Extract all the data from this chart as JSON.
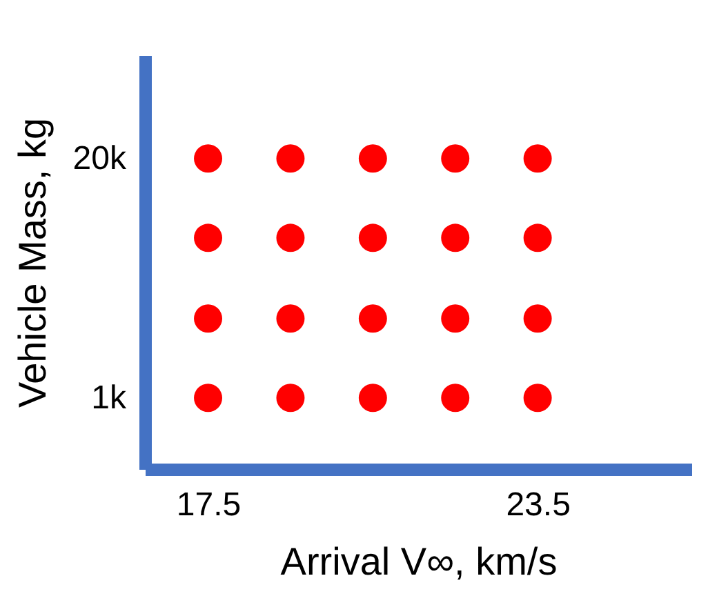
{
  "chart_data": {
    "type": "scatter",
    "xlabel": "Arrival V∞, km/s",
    "ylabel": "Vehicle Mass, kg",
    "x": [
      17.5,
      19,
      20.5,
      22,
      23.5,
      17.5,
      19,
      20.5,
      22,
      23.5,
      17.5,
      19,
      20.5,
      22,
      23.5,
      17.5,
      19,
      20.5,
      22,
      23.5
    ],
    "series": [
      {
        "color": "#ff0000",
        "values": [
          1000,
          1000,
          1000,
          1000,
          1000,
          7300,
          7300,
          7300,
          7300,
          7300,
          13700,
          13700,
          13700,
          13700,
          13700,
          20000,
          20000,
          20000,
          20000,
          20000
        ]
      }
    ],
    "xlim": [
      16.35,
      26.3
    ],
    "ylim": [
      -4650,
      28200
    ],
    "xticks": [
      17.5,
      23.5
    ],
    "yticks": [
      {
        "value": 1000,
        "label": "1k"
      },
      {
        "value": 20000,
        "label": "20k"
      }
    ],
    "marker": "circle",
    "grid": false,
    "legend": false
  }
}
